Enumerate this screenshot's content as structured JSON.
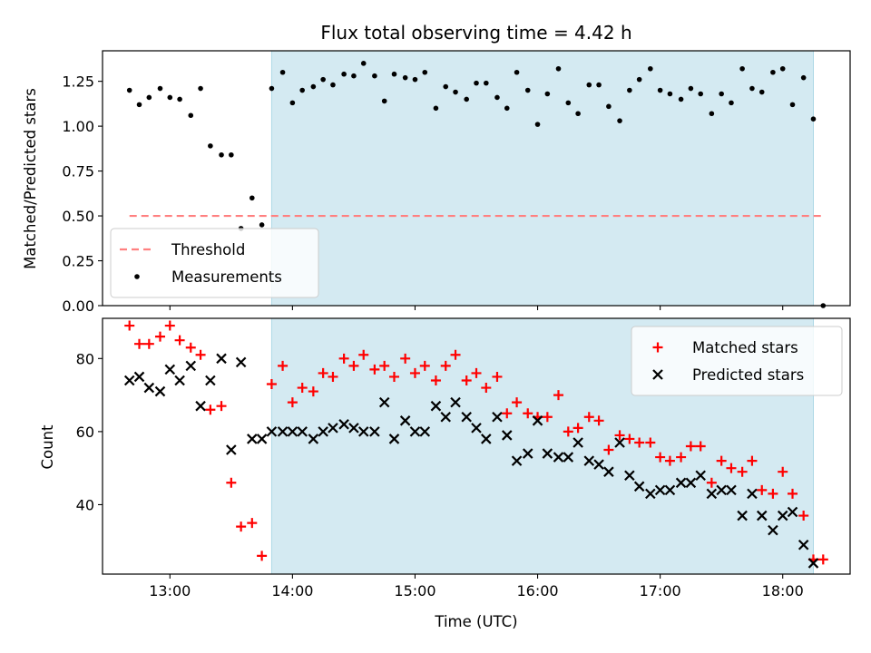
{
  "chart_data": {
    "title": "Flux total observing time = 4.42 h",
    "xlabel": "Time (UTC)",
    "x_units": "hours UTC",
    "xlim": [
      12.45,
      18.55
    ],
    "xticks": [
      13,
      14,
      15,
      16,
      17,
      18
    ],
    "xtick_labels": [
      "13:00",
      "14:00",
      "15:00",
      "16:00",
      "17:00",
      "18:00"
    ],
    "shaded_interval": {
      "start": 13.83,
      "end": 18.25,
      "color": "#add8e6"
    },
    "panels": [
      {
        "type": "scatter",
        "ylabel": "Matched/Predicted stars",
        "ylim": [
          0,
          1.42
        ],
        "yticks": [
          0.0,
          0.25,
          0.5,
          0.75,
          1.0,
          1.25
        ],
        "ytick_labels": [
          "0.00",
          "0.25",
          "0.50",
          "0.75",
          "1.00",
          "1.25"
        ],
        "legend": {
          "placement": "lower-left"
        },
        "lines": [
          {
            "name": "Threshold",
            "y": 0.5,
            "x_range": [
              12.67,
              18.33
            ],
            "color": "#ff8080",
            "style": "dashed"
          }
        ],
        "series": [
          {
            "name": "Measurements",
            "marker": "dot",
            "color": "#000000",
            "x": [
              12.67,
              12.75,
              12.83,
              12.92,
              13.0,
              13.08,
              13.17,
              13.25,
              13.33,
              13.42,
              13.5,
              13.58,
              13.67,
              13.75,
              13.83,
              13.92,
              14.0,
              14.08,
              14.17,
              14.25,
              14.33,
              14.42,
              14.5,
              14.58,
              14.67,
              14.75,
              14.83,
              14.92,
              15.0,
              15.08,
              15.17,
              15.25,
              15.33,
              15.42,
              15.5,
              15.58,
              15.67,
              15.75,
              15.83,
              15.92,
              16.0,
              16.08,
              16.17,
              16.25,
              16.33,
              16.42,
              16.5,
              16.58,
              16.67,
              16.75,
              16.83,
              16.92,
              17.0,
              17.08,
              17.17,
              17.25,
              17.33,
              17.42,
              17.5,
              17.58,
              17.67,
              17.75,
              17.83,
              17.92,
              18.0,
              18.08,
              18.17,
              18.25,
              18.33
            ],
            "y": [
              1.2,
              1.12,
              1.16,
              1.21,
              1.16,
              1.15,
              1.06,
              1.21,
              0.89,
              0.84,
              0.84,
              0.43,
              0.6,
              0.45,
              1.21,
              1.3,
              1.13,
              1.2,
              1.22,
              1.26,
              1.23,
              1.29,
              1.28,
              1.35,
              1.28,
              1.14,
              1.29,
              1.27,
              1.26,
              1.3,
              1.1,
              1.22,
              1.19,
              1.15,
              1.24,
              1.24,
              1.16,
              1.1,
              1.3,
              1.2,
              1.01,
              1.18,
              1.32,
              1.13,
              1.07,
              1.23,
              1.23,
              1.11,
              1.03,
              1.2,
              1.26,
              1.32,
              1.2,
              1.18,
              1.15,
              1.21,
              1.18,
              1.07,
              1.18,
              1.13,
              1.32,
              1.21,
              1.19,
              1.3,
              1.32,
              1.12,
              1.27,
              1.04,
              0.0
            ]
          }
        ]
      },
      {
        "type": "scatter",
        "ylabel": "Count",
        "ylim": [
          21,
          91
        ],
        "yticks": [
          40,
          60,
          80
        ],
        "ytick_labels": [
          "40",
          "60",
          "80"
        ],
        "legend": {
          "placement": "top-right"
        },
        "series": [
          {
            "name": "Matched stars",
            "marker": "plus",
            "color": "#ff0000",
            "x": [
              12.67,
              12.75,
              12.83,
              12.92,
              13.0,
              13.08,
              13.17,
              13.25,
              13.33,
              13.42,
              13.5,
              13.58,
              13.67,
              13.75,
              13.83,
              13.92,
              14.0,
              14.08,
              14.17,
              14.25,
              14.33,
              14.42,
              14.5,
              14.58,
              14.67,
              14.75,
              14.83,
              14.92,
              15.0,
              15.08,
              15.17,
              15.25,
              15.33,
              15.42,
              15.5,
              15.58,
              15.67,
              15.75,
              15.83,
              15.92,
              16.0,
              16.08,
              16.17,
              16.25,
              16.33,
              16.42,
              16.5,
              16.58,
              16.67,
              16.75,
              16.83,
              16.92,
              17.0,
              17.08,
              17.17,
              17.25,
              17.33,
              17.42,
              17.5,
              17.58,
              17.67,
              17.75,
              17.83,
              17.92,
              18.0,
              18.08,
              18.17,
              18.25,
              18.33
            ],
            "y": [
              89,
              84,
              84,
              86,
              89,
              85,
              83,
              81,
              66,
              67,
              46,
              34,
              35,
              26,
              73,
              78,
              68,
              72,
              71,
              76,
              75,
              80,
              78,
              81,
              77,
              78,
              75,
              80,
              76,
              78,
              74,
              78,
              81,
              74,
              76,
              72,
              75,
              65,
              68,
              65,
              64,
              64,
              70,
              60,
              61,
              64,
              63,
              55,
              59,
              58,
              57,
              57,
              53,
              52,
              53,
              56,
              56,
              46,
              52,
              50,
              49,
              52,
              44,
              43,
              49,
              43,
              37,
              25,
              25
            ]
          },
          {
            "name": "Predicted stars",
            "marker": "x",
            "color": "#000000",
            "x": [
              12.67,
              12.75,
              12.83,
              12.92,
              13.0,
              13.08,
              13.17,
              13.25,
              13.33,
              13.42,
              13.5,
              13.58,
              13.67,
              13.75,
              13.83,
              13.92,
              14.0,
              14.08,
              14.17,
              14.25,
              14.33,
              14.42,
              14.5,
              14.58,
              14.67,
              14.75,
              14.83,
              14.92,
              15.0,
              15.08,
              15.17,
              15.25,
              15.33,
              15.42,
              15.5,
              15.58,
              15.67,
              15.75,
              15.83,
              15.92,
              16.0,
              16.08,
              16.17,
              16.25,
              16.33,
              16.42,
              16.5,
              16.58,
              16.67,
              16.75,
              16.83,
              16.92,
              17.0,
              17.08,
              17.17,
              17.25,
              17.33,
              17.42,
              17.5,
              17.58,
              17.67,
              17.75,
              17.83,
              17.92,
              18.0,
              18.08,
              18.17,
              18.25
            ],
            "y": [
              74,
              75,
              72,
              71,
              77,
              74,
              78,
              67,
              74,
              80,
              55,
              79,
              58,
              58,
              60,
              60,
              60,
              60,
              58,
              60,
              61,
              62,
              61,
              60,
              60,
              68,
              58,
              63,
              60,
              60,
              67,
              64,
              68,
              64,
              61,
              58,
              64,
              59,
              52,
              54,
              63,
              54,
              53,
              53,
              57,
              52,
              51,
              49,
              57,
              48,
              45,
              43,
              44,
              44,
              46,
              46,
              48,
              43,
              44,
              44,
              37,
              43,
              37,
              33,
              37,
              38,
              29,
              24
            ]
          }
        ]
      }
    ]
  }
}
